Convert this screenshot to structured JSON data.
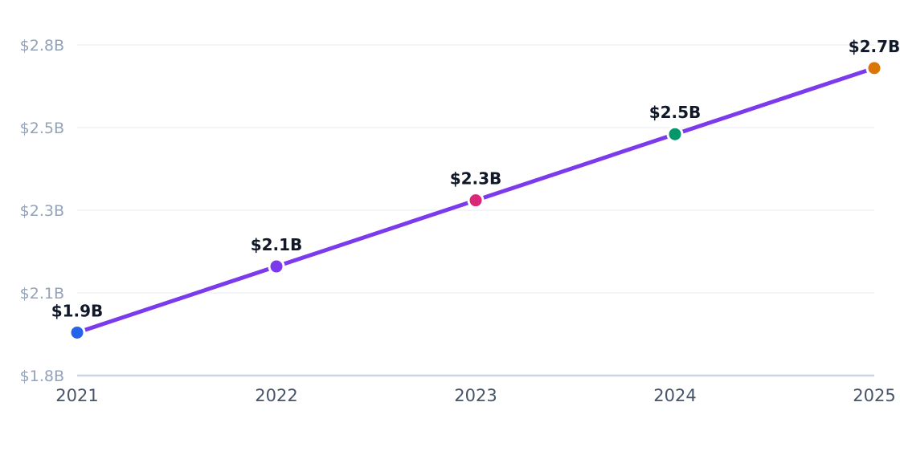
{
  "chart_data": {
    "type": "line",
    "title": "",
    "xlabel": "",
    "ylabel": "",
    "x": [
      "2021",
      "2022",
      "2023",
      "2024",
      "2025"
    ],
    "series": [
      {
        "values": [
          1.93,
          2.13,
          2.33,
          2.53,
          2.73
        ],
        "data_labels": [
          "$1.9B",
          "$2.1B",
          "$2.3B",
          "$2.5B",
          "$2.7B"
        ],
        "line_color": "#7c3aed",
        "point_colors": [
          "#2563eb",
          "#7c3aed",
          "#db2777",
          "#059669",
          "#d97706"
        ]
      }
    ],
    "ylim": [
      1.8,
      2.8
    ],
    "y_ticks": [
      {
        "value": 1.8,
        "label": "$1.8B"
      },
      {
        "value": 2.05,
        "label": "$2.1B"
      },
      {
        "value": 2.3,
        "label": "$2.3B"
      },
      {
        "value": 2.55,
        "label": "$2.5B"
      },
      {
        "value": 2.8,
        "label": "$2.8B"
      }
    ],
    "grid": true,
    "legend": "none"
  }
}
